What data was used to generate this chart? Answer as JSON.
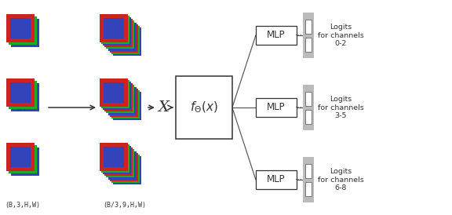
{
  "bg_color": "#ffffff",
  "col_red": "#cc2222",
  "col_green": "#22aa22",
  "col_blue": "#3344bb",
  "label_left": "(B,3,H,W)",
  "label_right": "(B/3,9,H,W)",
  "mlp_labels": [
    "MLP",
    "MLP",
    "MLP"
  ],
  "logit_labels": [
    "Logits\nfor channels\n0-2",
    "Logits\nfor channels\n3-5",
    "Logits\nfor channels\n6-8"
  ],
  "fx_label": "$f_{\\Theta}(x)$",
  "X_label": "X",
  "dots_label": "..."
}
